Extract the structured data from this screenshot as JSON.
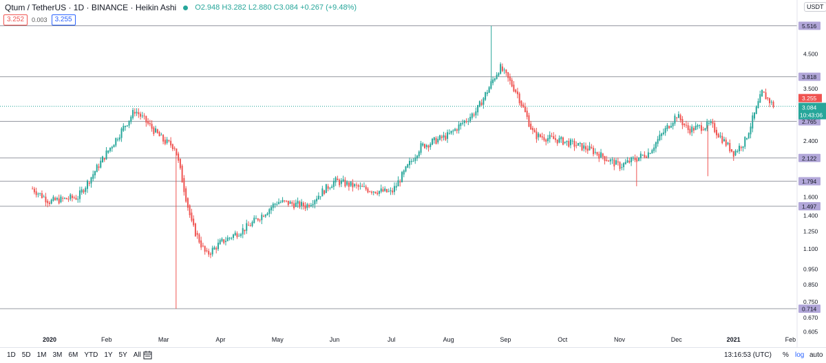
{
  "header": {
    "symbol": "Qtum / TetherUS · 1D · BINANCE · Heikin Ashi",
    "ohlc": "O2.948 H3.282 L2.880 C3.084 +0.267 (+9.48%)",
    "sell_price": "3.252",
    "spread": "0.003",
    "buy_price": "3.255",
    "currency": "USDT"
  },
  "bottom_bar": {
    "ranges": [
      "1D",
      "5D",
      "1M",
      "3M",
      "6M",
      "YTD",
      "1Y",
      "5Y",
      "All"
    ],
    "clock": "13:16:53 (UTC)",
    "percent_label": "%",
    "log_label": "log",
    "auto_label": "auto"
  },
  "colors": {
    "up": "#26a69a",
    "down": "#ef5350",
    "level_line": "#9598a1",
    "level_badge": "#b2a7d9",
    "last_price": "#26a69a",
    "ask_badge": "#ef5350"
  },
  "chart_data": {
    "type": "candlestick",
    "title": "Qtum / TetherUS · 1D · BINANCE · Heikin Ashi",
    "yscale": "log",
    "ylim": [
      0.6,
      6.2
    ],
    "x_labels": [
      "2020",
      "Feb",
      "Mar",
      "Apr",
      "May",
      "Jun",
      "Jul",
      "Aug",
      "Sep",
      "Oct",
      "Nov",
      "Dec",
      "2021",
      "Feb"
    ],
    "y_ticks": [
      "4.500",
      "3.500",
      "2.400",
      "1.600",
      "1.400",
      "1.250",
      "1.100",
      "0.950",
      "0.850",
      "0.750",
      "0.670",
      "0.605"
    ],
    "levels": [
      "5.516",
      "3.818",
      "2.765",
      "2.122",
      "1.794",
      "1.497",
      "0.714"
    ],
    "last_price_label": "3.084",
    "countdown": "10:43:06",
    "ask_label": "3.255",
    "path_months": [
      -0.3,
      0,
      0.5,
      1.0,
      1.5,
      2.0,
      2.2,
      2.5,
      2.75,
      3.0,
      3.5,
      4.0,
      4.5,
      5.0,
      5.5,
      6.0,
      6.5,
      7.0,
      7.5,
      7.9,
      8.2,
      8.5,
      9.0,
      9.5,
      10.0,
      10.5,
      11.0,
      11.2,
      11.6,
      12.0,
      12.2,
      12.5,
      12.7
    ],
    "path_values": [
      1.7,
      1.55,
      1.6,
      2.2,
      3.0,
      2.4,
      2.3,
      1.3,
      1.05,
      1.15,
      1.3,
      1.55,
      1.5,
      1.8,
      1.7,
      1.65,
      2.3,
      2.5,
      3.0,
      4.1,
      3.4,
      2.5,
      2.4,
      2.25,
      2.0,
      2.2,
      2.9,
      2.6,
      2.7,
      2.2,
      2.4,
      3.4,
      3.1
    ],
    "spikes": [
      {
        "month": 2.22,
        "value": 0.714
      },
      {
        "month": 7.75,
        "value": 5.516
      },
      {
        "month": 10.3,
        "value": 1.73
      },
      {
        "month": 11.55,
        "value": 1.86
      }
    ]
  }
}
